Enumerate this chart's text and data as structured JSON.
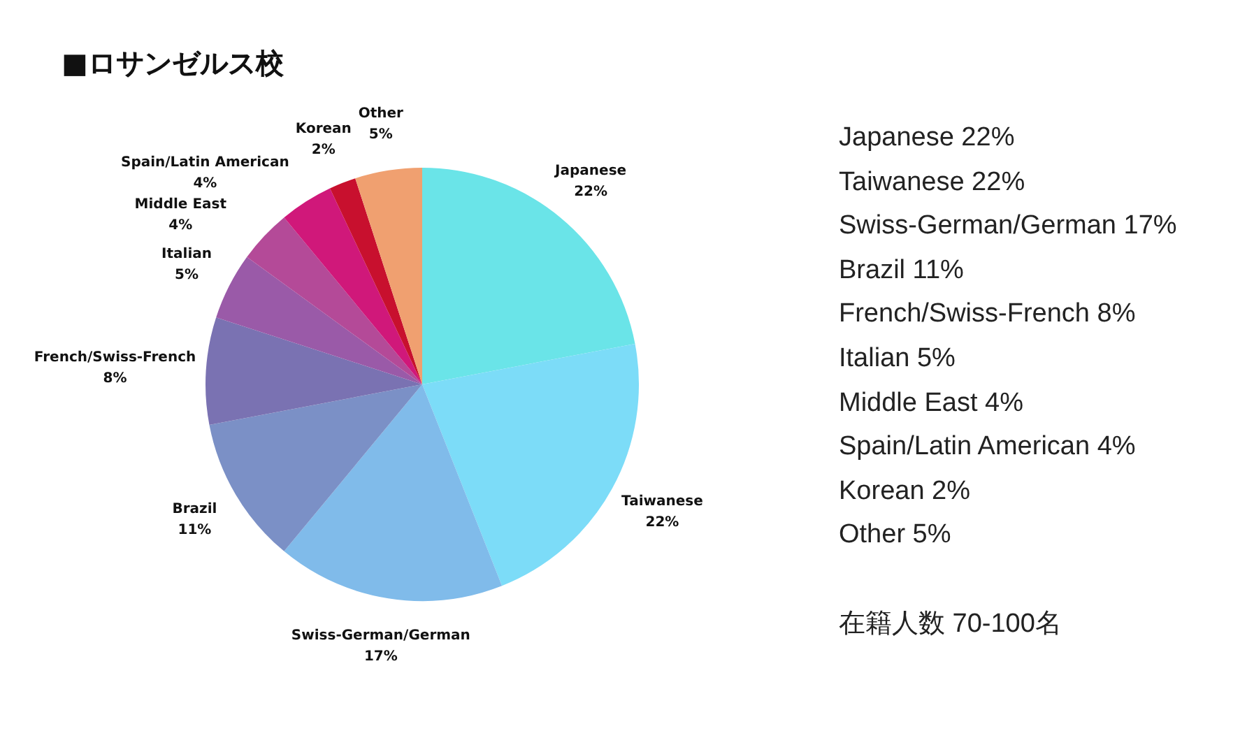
{
  "chart_data": {
    "type": "pie",
    "title": "■ロサンゼルス校",
    "categories": [
      "Japanese",
      "Taiwanese",
      "Swiss-German/German",
      "Brazil",
      "French/Swiss-French",
      "Italian",
      "Middle East",
      "Spain/Latin American",
      "Korean",
      "Other"
    ],
    "values": [
      22,
      22,
      17,
      11,
      8,
      5,
      4,
      4,
      2,
      5
    ],
    "value_labels": [
      "22%",
      "22%",
      "17%",
      "11%",
      "8%",
      "5%",
      "4%",
      "4%",
      "2%",
      "5%"
    ],
    "colors": [
      "#6ae4e8",
      "#7cdcf8",
      "#80bbea",
      "#7b90c6",
      "#7a72b2",
      "#9a5aa8",
      "#b44a98",
      "#d0187a",
      "#c8102e",
      "#f0a070"
    ],
    "legend": false,
    "annotations": [
      "Japanese 22%",
      "Taiwanese 22%",
      "Swiss-German/German 17%",
      "Brazil 11%",
      "French/Swiss-French 8%",
      "Italian 5%",
      "Middle East 4%",
      "Spain/Latin American 4%",
      "Korean 2%",
      "Other 5%",
      "在籍人数 70-100名"
    ]
  }
}
